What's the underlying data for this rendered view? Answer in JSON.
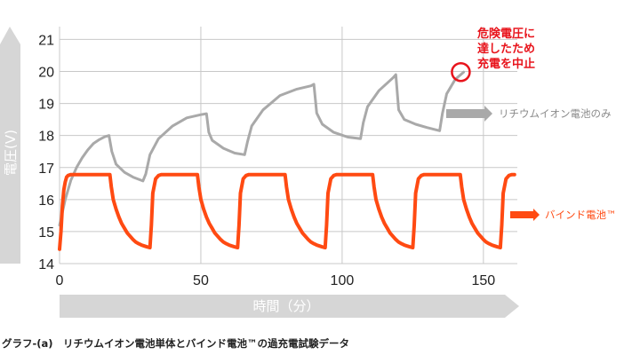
{
  "caption": "グラフ-(a)　リチウムイオン電池単体とバインド電池™の過充電試験データ",
  "colors": {
    "lithium": "#a9a9a9",
    "bind": "#ff4a12",
    "annotation": "#e8141c",
    "axis_band": "#d6d6d6"
  },
  "chart_data": {
    "type": "line",
    "xlabel": "時間（分）",
    "ylabel": "電圧(V)",
    "xlim": [
      0,
      162
    ],
    "ylim": [
      14,
      21.4
    ],
    "x_ticks": [
      0,
      50,
      100,
      150
    ],
    "y_ticks": [
      14,
      15,
      16,
      17,
      18,
      19,
      20,
      21
    ],
    "grid": true,
    "series": [
      {
        "name": "リチウムイオン電池のみ",
        "color": "#a9a9a9",
        "x": [
          0,
          2,
          4,
          6,
          8,
          10,
          12,
          14,
          16,
          17.5,
          18.5,
          20,
          23,
          26,
          29.5,
          30.5,
          32,
          35,
          40,
          45,
          50,
          52,
          52.8,
          54,
          58,
          62,
          65.5,
          66.5,
          68,
          72,
          78,
          84,
          89,
          90,
          91,
          93,
          97,
          102,
          106.5,
          107.5,
          109,
          113,
          118,
          119,
          120,
          122,
          126,
          130,
          134.5,
          135.5,
          137,
          140,
          143
        ],
        "values": [
          15.2,
          16.0,
          16.6,
          17.0,
          17.3,
          17.55,
          17.75,
          17.87,
          17.96,
          18.0,
          17.5,
          17.1,
          16.85,
          16.7,
          16.58,
          16.8,
          17.4,
          17.9,
          18.3,
          18.55,
          18.65,
          18.68,
          18.1,
          17.85,
          17.6,
          17.45,
          17.4,
          17.8,
          18.3,
          18.8,
          19.25,
          19.45,
          19.55,
          19.6,
          18.7,
          18.35,
          18.1,
          17.95,
          17.9,
          18.4,
          18.9,
          19.4,
          19.8,
          19.9,
          18.8,
          18.5,
          18.35,
          18.25,
          18.15,
          18.7,
          19.3,
          19.75,
          19.98
        ]
      },
      {
        "name": "バインド電池™",
        "color": "#ff4a12",
        "x": [
          0,
          0.5,
          1,
          1.5,
          2,
          2.5,
          3,
          4,
          5,
          6,
          17.8,
          18.3,
          19,
          20,
          21,
          22,
          23,
          24,
          25,
          26,
          27,
          28,
          29,
          30,
          31,
          32,
          32.5,
          33,
          34,
          35,
          36,
          37,
          48.8,
          49.3,
          50,
          51,
          52,
          53,
          54,
          55,
          56,
          57,
          58,
          59,
          60,
          61,
          62,
          63,
          63.5,
          64,
          65,
          66,
          67,
          68,
          79.8,
          80.3,
          81,
          82,
          83,
          84,
          85,
          86,
          87,
          88,
          89,
          90,
          91,
          92,
          93,
          94,
          94.5,
          95,
          96,
          97,
          98,
          99,
          110.8,
          111.3,
          112,
          113,
          114,
          115,
          116,
          117,
          118,
          119,
          120,
          121,
          122,
          123,
          124,
          125,
          125.5,
          126,
          127,
          128,
          129,
          130,
          141.8,
          142.3,
          143,
          144,
          145,
          146,
          147,
          148,
          149,
          150,
          151,
          152,
          153,
          154,
          155,
          156,
          156.5,
          157,
          158,
          159,
          160,
          161
        ],
        "values": [
          14.45,
          15.0,
          15.8,
          16.3,
          16.55,
          16.7,
          16.75,
          16.78,
          16.78,
          16.78,
          16.78,
          16.4,
          16.0,
          15.7,
          15.45,
          15.25,
          15.1,
          14.95,
          14.85,
          14.75,
          14.67,
          14.62,
          14.58,
          14.55,
          14.52,
          14.5,
          15.2,
          16.2,
          16.65,
          16.75,
          16.78,
          16.78,
          16.78,
          16.4,
          16.0,
          15.7,
          15.45,
          15.25,
          15.1,
          14.95,
          14.85,
          14.75,
          14.67,
          14.62,
          14.58,
          14.55,
          14.52,
          14.5,
          15.2,
          16.2,
          16.65,
          16.75,
          16.78,
          16.78,
          16.78,
          16.4,
          16.0,
          15.7,
          15.45,
          15.25,
          15.1,
          14.95,
          14.85,
          14.75,
          14.67,
          14.62,
          14.58,
          14.55,
          14.52,
          14.5,
          15.2,
          16.2,
          16.65,
          16.75,
          16.78,
          16.78,
          16.78,
          16.4,
          16.0,
          15.7,
          15.45,
          15.25,
          15.1,
          14.95,
          14.85,
          14.75,
          14.67,
          14.62,
          14.58,
          14.55,
          14.52,
          14.5,
          15.2,
          16.2,
          16.65,
          16.75,
          16.78,
          16.78,
          16.78,
          16.4,
          16.0,
          15.7,
          15.45,
          15.25,
          15.1,
          14.95,
          14.85,
          14.75,
          14.67,
          14.62,
          14.58,
          14.55,
          14.52,
          14.5,
          15.2,
          16.2,
          16.65,
          16.75,
          16.78,
          16.78
        ]
      }
    ],
    "annotation": {
      "lines": [
        "危険電圧に",
        "達したため",
        "充電を中止"
      ],
      "x": 142,
      "y": 19.98
    }
  }
}
